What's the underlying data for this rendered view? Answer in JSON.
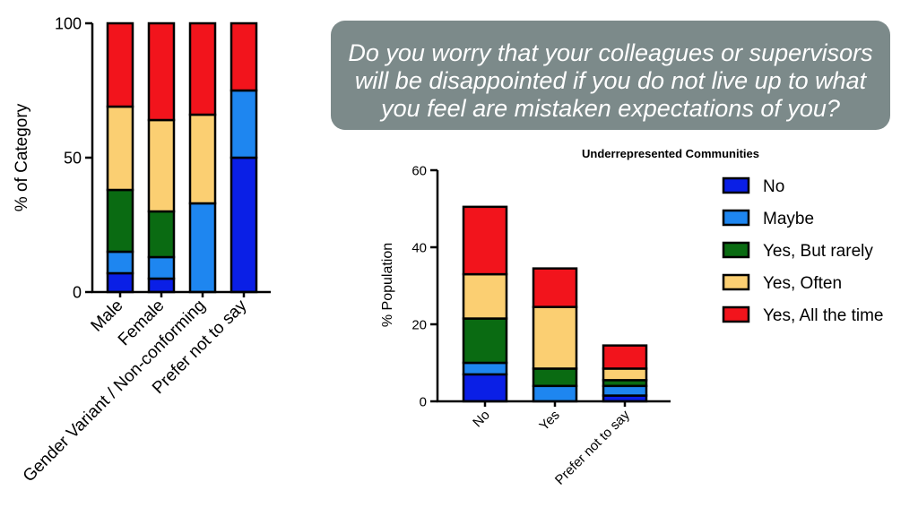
{
  "question": "Do you worry that your colleagues or supervisors will be disappointed if you do not live up to what you feel are mistaken expectations of you?",
  "legend": {
    "items": [
      {
        "label": "No",
        "color": "#0a1fe6"
      },
      {
        "label": "Maybe",
        "color": "#1e86f0"
      },
      {
        "label": "Yes, But rarely",
        "color": "#0a6b12"
      },
      {
        "label": "Yes, Often",
        "color": "#fbcf72"
      },
      {
        "label": "Yes, All the time",
        "color": "#f2141c"
      }
    ]
  },
  "chart_data": [
    {
      "type": "bar",
      "stacked": true,
      "title": "",
      "xlabel": "",
      "ylabel": "% of Category",
      "ylim": [
        0,
        100
      ],
      "yticks": [
        "0",
        "50",
        "100"
      ],
      "categories": [
        "Male",
        "Female",
        "Gender Variant / Non-conforming",
        "Prefer not to say"
      ],
      "series": [
        {
          "name": "No",
          "values": [
            7,
            5,
            0,
            50
          ]
        },
        {
          "name": "Maybe",
          "values": [
            8,
            8,
            33,
            25
          ]
        },
        {
          "name": "Yes, But rarely",
          "values": [
            23,
            17,
            0,
            0
          ]
        },
        {
          "name": "Yes, Often",
          "values": [
            31,
            34,
            33,
            0
          ]
        },
        {
          "name": "Yes, All the time",
          "values": [
            31,
            36,
            34,
            25
          ]
        }
      ],
      "grid": false
    },
    {
      "type": "bar",
      "stacked": true,
      "title": "Underrepresented Communities",
      "xlabel": "",
      "ylabel": "% Population",
      "ylim": [
        0,
        60
      ],
      "yticks": [
        "0",
        "20",
        "40",
        "60"
      ],
      "categories": [
        "No",
        "Yes",
        "Prefer not to say"
      ],
      "series": [
        {
          "name": "No",
          "values": [
            7,
            0,
            1.5
          ]
        },
        {
          "name": "Maybe",
          "values": [
            3,
            4,
            2.5
          ]
        },
        {
          "name": "Yes, But rarely",
          "values": [
            11.5,
            4.5,
            1.5
          ]
        },
        {
          "name": "Yes, Often",
          "values": [
            11.5,
            16,
            3
          ]
        },
        {
          "name": "Yes, All the time",
          "values": [
            17.5,
            10,
            6
          ]
        }
      ],
      "legend_position": "right",
      "grid": false
    }
  ]
}
